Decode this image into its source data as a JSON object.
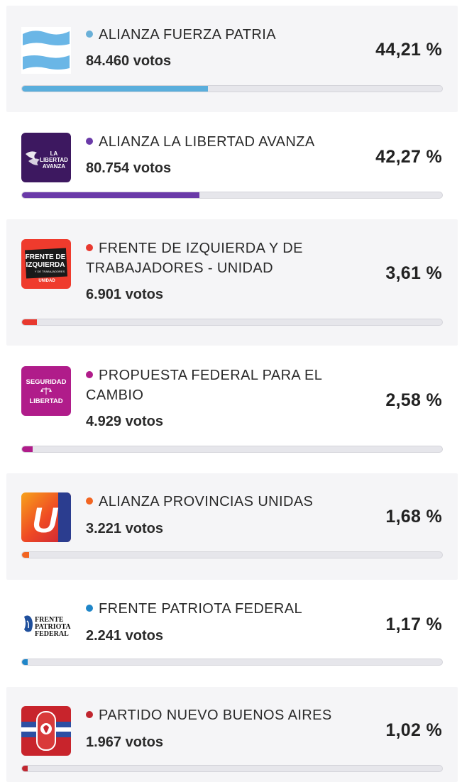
{
  "parties": [
    {
      "name": "ALIANZA FUERZA PATRIA",
      "votes": "84.460 votos",
      "percent_text": "44,21 %",
      "percent": 44.21,
      "color": "#5aaedc",
      "logo_icon": "argentina-flag-icon"
    },
    {
      "name": "ALIANZA LA LIBERTAD AVANZA",
      "votes": "80.754 votos",
      "percent_text": "42,27 %",
      "percent": 42.27,
      "color": "#6a3aa8",
      "logo_icon": "la-libertad-avanza-logo-icon",
      "logo_text": [
        "LA",
        "LIBERTAD",
        "AVANZA"
      ]
    },
    {
      "name": "FRENTE DE IZQUIERDA Y DE TRABAJADORES - UNIDAD",
      "votes": "6.901 votos",
      "percent_text": "3,61 %",
      "percent": 3.61,
      "color": "#e8392f",
      "logo_icon": "frente-de-izquierda-logo-icon",
      "logo_text": [
        "FRENTE DE",
        "IZQUIERDA",
        "Y DE TRABAJADORES",
        "UNIDAD"
      ]
    },
    {
      "name": "PROPUESTA FEDERAL PARA EL CAMBIO",
      "votes": "4.929 votos",
      "percent_text": "2,58 %",
      "percent": 2.58,
      "color": "#b01c8a",
      "logo_icon": "seguridad-libertad-logo-icon",
      "logo_text": [
        "SEGURIDAD",
        "LIBERTAD"
      ]
    },
    {
      "name": "ALIANZA PROVINCIAS UNIDAS",
      "votes": "3.221 votos",
      "percent_text": "1,68 %",
      "percent": 1.68,
      "color": "#f26522",
      "logo_icon": "provincias-unidas-u-logo-icon",
      "logo_text": [
        "U"
      ]
    },
    {
      "name": "FRENTE PATRIOTA FEDERAL",
      "votes": "2.241 votos",
      "percent_text": "1,17 %",
      "percent": 1.17,
      "color": "#1f86c8",
      "logo_icon": "frente-patriota-federal-logo-icon",
      "logo_text": [
        "FRENTE",
        "PATRIOTA",
        "FEDERAL"
      ]
    },
    {
      "name": "PARTIDO NUEVO BUENOS AIRES",
      "votes": "1.967 votos",
      "percent_text": "1,02 %",
      "percent": 1.02,
      "color": "#c0262f",
      "logo_icon": "partido-nuevo-buenos-aires-logo-icon"
    }
  ]
}
